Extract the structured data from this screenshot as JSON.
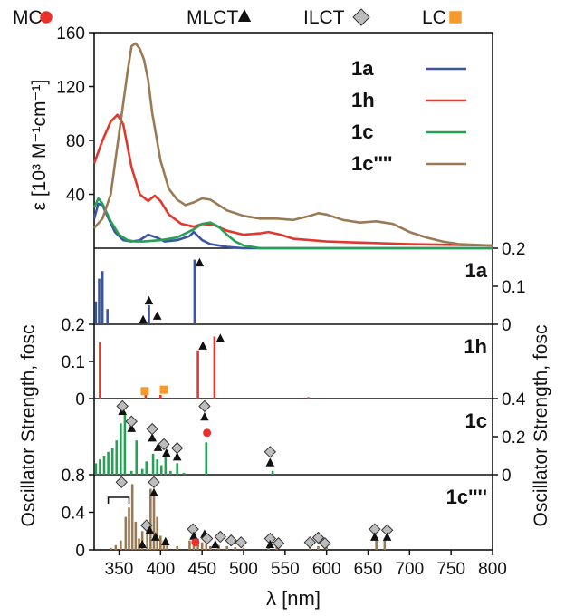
{
  "legend_top": [
    {
      "label": "MC",
      "marker": "circle",
      "color": "#e8322b"
    },
    {
      "label": "MLCT",
      "marker": "triangle",
      "color": "#111111"
    },
    {
      "label": "ILCT",
      "marker": "diamond",
      "color": "#bdbdbd"
    },
    {
      "label": "LC",
      "marker": "square",
      "color": "#f39a2b"
    }
  ],
  "axes_text": {
    "ylabel_top": "ε [10³ M⁻¹cm⁻¹]",
    "ylabel_left": "Oscillator Strength, fosc",
    "ylabel_right": "Oscillator Strength, fosc",
    "xlabel": "λ [nm]"
  },
  "chart_data": [
    {
      "type": "line",
      "xlabel": "λ [nm]",
      "ylabel": "ε [10³ M⁻¹cm⁻¹]",
      "xlim": [
        320,
        800
      ],
      "ylim": [
        0,
        160
      ],
      "yticks": [
        "40",
        "80",
        "120",
        "160"
      ],
      "legend_position": "top-right",
      "series": [
        {
          "name": "1a",
          "color": "#3b55a3",
          "x": [
            320,
            325,
            330,
            335,
            345,
            355,
            365,
            375,
            385,
            395,
            405,
            420,
            435,
            440,
            450,
            460,
            480,
            500,
            550,
            600,
            800
          ],
          "y": [
            22,
            33,
            32,
            25,
            12,
            6,
            5,
            6,
            10,
            8,
            5,
            6,
            9,
            12,
            6,
            3,
            1,
            0,
            0,
            0,
            0
          ]
        },
        {
          "name": "1h",
          "color": "#e0382f",
          "x": [
            320,
            330,
            340,
            348,
            355,
            365,
            375,
            385,
            393,
            400,
            410,
            425,
            440,
            450,
            465,
            480,
            500,
            520,
            530,
            545,
            560,
            600,
            650,
            700,
            800
          ],
          "y": [
            63,
            80,
            94,
            99,
            92,
            60,
            40,
            35,
            39,
            35,
            25,
            18,
            16,
            18,
            17,
            13,
            10,
            11,
            12,
            10,
            7,
            5,
            4,
            3,
            2
          ]
        },
        {
          "name": "1c",
          "color": "#27a055",
          "x": [
            320,
            325,
            330,
            340,
            350,
            360,
            370,
            380,
            400,
            420,
            440,
            450,
            460,
            470,
            480,
            490,
            500,
            520,
            800
          ],
          "y": [
            30,
            37,
            33,
            20,
            10,
            6,
            5,
            5,
            6,
            8,
            14,
            18,
            19,
            16,
            10,
            5,
            2,
            0,
            0
          ]
        },
        {
          "name": "1c''''",
          "color": "#9a7a55",
          "x": [
            320,
            330,
            340,
            350,
            360,
            365,
            370,
            375,
            380,
            385,
            390,
            400,
            410,
            420,
            430,
            440,
            450,
            460,
            480,
            500,
            520,
            540,
            560,
            580,
            590,
            600,
            620,
            640,
            660,
            680,
            700,
            720,
            740,
            760,
            800
          ],
          "y": [
            15,
            22,
            40,
            85,
            130,
            150,
            152,
            148,
            140,
            125,
            100,
            65,
            44,
            36,
            32,
            34,
            37,
            36,
            28,
            24,
            22,
            22,
            21,
            24,
            26,
            25,
            21,
            19,
            20,
            18,
            12,
            8,
            5,
            3,
            2
          ]
        }
      ]
    },
    {
      "type": "bar",
      "title": "1a",
      "xlabel": "λ [nm]",
      "ylabel": "Oscillator Strength, fosc",
      "xlim": [
        320,
        800
      ],
      "ylim": [
        0,
        0.2
      ],
      "yticks": [
        "0",
        "0.1",
        "0.2"
      ],
      "color": "#3b55a3",
      "x": [
        322,
        326,
        330,
        336,
        386,
        441
      ],
      "values": [
        0.06,
        0.12,
        0.14,
        0.04,
        0.05,
        0.17
      ],
      "markers": [
        {
          "x": 386,
          "y": 0.06,
          "kind": "triangle"
        },
        {
          "x": 379,
          "y": 0.01,
          "kind": "triangle"
        },
        {
          "x": 396,
          "y": 0.02,
          "kind": "triangle"
        },
        {
          "x": 447,
          "y": 0.16,
          "kind": "triangle"
        }
      ]
    },
    {
      "type": "bar",
      "title": "1h",
      "xlabel": "λ [nm]",
      "ylabel": "Oscillator Strength, fosc",
      "xlim": [
        320,
        800
      ],
      "ylim": [
        0,
        0.2
      ],
      "yticks": [
        "0",
        "0.1",
        "0.2"
      ],
      "color": "#e0382f",
      "x": [
        327,
        382,
        400,
        445,
        465,
        578
      ],
      "values": [
        0.152,
        0.01,
        0.01,
        0.13,
        0.167,
        0.004
      ],
      "markers": [
        {
          "x": 381,
          "y": 0.02,
          "kind": "square"
        },
        {
          "x": 404,
          "y": 0.024,
          "kind": "square"
        },
        {
          "x": 451,
          "y": 0.14,
          "kind": "triangle"
        },
        {
          "x": 472,
          "y": 0.16,
          "kind": "triangle"
        }
      ]
    },
    {
      "type": "bar",
      "title": "1c",
      "xlabel": "λ [nm]",
      "ylabel": "Oscillator Strength, fosc",
      "xlim": [
        320,
        800
      ],
      "ylim": [
        0,
        0.4
      ],
      "yticks": [
        "0",
        "0.2",
        "0.4"
      ],
      "color": "#27a055",
      "x": [
        322,
        327,
        332,
        337,
        342,
        347,
        352,
        357,
        365,
        371,
        378,
        383,
        391,
        396,
        401,
        406,
        412,
        420,
        428,
        455,
        535
      ],
      "values": [
        0.06,
        0.08,
        0.1,
        0.12,
        0.14,
        0.18,
        0.27,
        0.33,
        0.02,
        0.18,
        0.03,
        0.07,
        0.11,
        0.08,
        0.05,
        0.09,
        0.02,
        0.06,
        0.01,
        0.17,
        0.02
      ],
      "markers": [
        {
          "x": 354,
          "y": 0.33,
          "kind": "triangle"
        },
        {
          "x": 354,
          "y": 0.36,
          "kind": "diamond"
        },
        {
          "x": 365,
          "y": 0.24,
          "kind": "triangle"
        },
        {
          "x": 365,
          "y": 0.28,
          "kind": "diamond"
        },
        {
          "x": 390,
          "y": 0.19,
          "kind": "triangle"
        },
        {
          "x": 390,
          "y": 0.24,
          "kind": "diamond"
        },
        {
          "x": 397,
          "y": 0.14,
          "kind": "triangle"
        },
        {
          "x": 404,
          "y": 0.16,
          "kind": "diamond"
        },
        {
          "x": 407,
          "y": 0.11,
          "kind": "triangle"
        },
        {
          "x": 420,
          "y": 0.14,
          "kind": "diamond"
        },
        {
          "x": 420,
          "y": 0.09,
          "kind": "triangle"
        },
        {
          "x": 453,
          "y": 0.36,
          "kind": "diamond"
        },
        {
          "x": 453,
          "y": 0.3,
          "kind": "triangle"
        },
        {
          "x": 456,
          "y": 0.22,
          "kind": "circle"
        },
        {
          "x": 532,
          "y": 0.12,
          "kind": "diamond"
        },
        {
          "x": 532,
          "y": 0.06,
          "kind": "triangle"
        }
      ]
    },
    {
      "type": "bar",
      "title": "1c''''",
      "xlabel": "λ [nm]",
      "ylabel": "Oscillator Strength, fosc",
      "xlim": [
        320,
        800
      ],
      "ylim": [
        0,
        0.8
      ],
      "yticks": [
        "0",
        "0.4",
        "0.8"
      ],
      "xticks": [
        "350",
        "400",
        "450",
        "500",
        "550",
        "600",
        "650",
        "700",
        "750",
        "800"
      ],
      "color": "#9a7a55",
      "x": [
        340,
        346,
        352,
        358,
        362,
        366,
        370,
        374,
        378,
        384,
        388,
        392,
        396,
        400,
        404,
        408,
        420,
        435,
        440,
        445,
        450,
        455,
        460,
        470,
        480,
        490,
        500,
        530,
        540,
        580,
        590,
        600,
        660,
        670
      ],
      "values": [
        0.02,
        0.05,
        0.1,
        0.35,
        0.45,
        0.7,
        0.3,
        0.12,
        0.2,
        0.25,
        0.65,
        0.6,
        0.35,
        0.15,
        0.1,
        0.05,
        0.04,
        0.1,
        0.15,
        0.12,
        0.08,
        0.06,
        0.04,
        0.05,
        0.04,
        0.03,
        0.02,
        0.05,
        0.04,
        0.05,
        0.04,
        0.03,
        0.12,
        0.1
      ],
      "markers": [
        {
          "x": 353,
          "y": 0.72,
          "kind": "diamond"
        },
        {
          "x": 392,
          "y": 0.72,
          "kind": "diamond"
        },
        {
          "x": 392,
          "y": 0.6,
          "kind": "triangle"
        },
        {
          "x": 383,
          "y": 0.26,
          "kind": "diamond"
        },
        {
          "x": 387,
          "y": 0.2,
          "kind": "triangle"
        },
        {
          "x": 378,
          "y": 0.05,
          "kind": "triangle"
        },
        {
          "x": 394,
          "y": 0.13,
          "kind": "triangle"
        },
        {
          "x": 406,
          "y": 0.08,
          "kind": "triangle"
        },
        {
          "x": 439,
          "y": 0.22,
          "kind": "diamond"
        },
        {
          "x": 440,
          "y": 0.14,
          "kind": "triangle"
        },
        {
          "x": 442,
          "y": 0.08,
          "kind": "circle"
        },
        {
          "x": 453,
          "y": 0.16,
          "kind": "triangle"
        },
        {
          "x": 456,
          "y": 0.12,
          "kind": "diamond"
        },
        {
          "x": 466,
          "y": 0.05,
          "kind": "triangle"
        },
        {
          "x": 472,
          "y": 0.14,
          "kind": "diamond"
        },
        {
          "x": 485,
          "y": 0.1,
          "kind": "diamond"
        },
        {
          "x": 497,
          "y": 0.08,
          "kind": "diamond"
        },
        {
          "x": 532,
          "y": 0.12,
          "kind": "diamond"
        },
        {
          "x": 532,
          "y": 0.05,
          "kind": "triangle"
        },
        {
          "x": 542,
          "y": 0.07,
          "kind": "diamond"
        },
        {
          "x": 580,
          "y": 0.08,
          "kind": "diamond"
        },
        {
          "x": 590,
          "y": 0.13,
          "kind": "diamond"
        },
        {
          "x": 598,
          "y": 0.07,
          "kind": "diamond"
        },
        {
          "x": 658,
          "y": 0.22,
          "kind": "diamond"
        },
        {
          "x": 658,
          "y": 0.13,
          "kind": "triangle"
        },
        {
          "x": 673,
          "y": 0.21,
          "kind": "diamond"
        },
        {
          "x": 673,
          "y": 0.13,
          "kind": "triangle"
        }
      ]
    }
  ]
}
